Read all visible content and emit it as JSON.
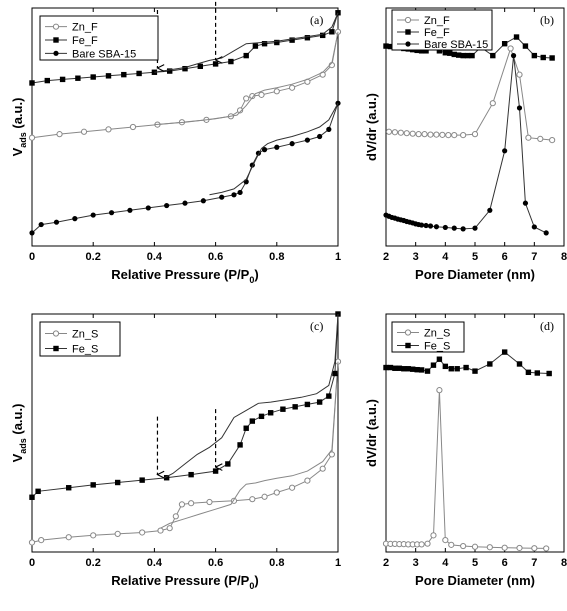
{
  "chart_data": [
    {
      "id": "a",
      "type": "line",
      "panel_label": "(a)",
      "xlabel": "Relative Pressure (P/P0)",
      "ylabel": "Vads (a.u.)",
      "xlim": [
        0,
        1
      ],
      "xticks": [
        "0",
        "0.2",
        "0.4",
        "0.6",
        "0.8",
        "1"
      ],
      "yticks_shown": false,
      "legend_position": "top-left",
      "annotations": [
        {
          "type": "dashed-arrow",
          "x": 0.41
        },
        {
          "type": "dashed-arrow",
          "x": 0.6
        }
      ],
      "series": [
        {
          "name": "Zn_F",
          "marker": "open-circle",
          "adsorption": {
            "x": [
              0.0,
              0.09,
              0.17,
              0.25,
              0.33,
              0.41,
              0.49,
              0.57,
              0.65,
              0.68,
              0.7,
              0.72,
              0.75,
              0.8,
              0.85,
              0.9,
              0.95,
              0.98,
              1.0
            ],
            "y": [
              0.455,
              0.47,
              0.48,
              0.49,
              0.5,
              0.51,
              0.52,
              0.53,
              0.545,
              0.57,
              0.62,
              0.63,
              0.635,
              0.65,
              0.665,
              0.69,
              0.72,
              0.76,
              0.9
            ]
          },
          "desorption": {
            "x": [
              1.0,
              0.98,
              0.95,
              0.9,
              0.85,
              0.8,
              0.76,
              0.73,
              0.7,
              0.67,
              0.6,
              0.5,
              0.4
            ],
            "y": [
              0.9,
              0.77,
              0.73,
              0.7,
              0.68,
              0.665,
              0.655,
              0.64,
              0.59,
              0.55,
              0.535,
              0.52,
              0.51
            ]
          }
        },
        {
          "name": "Fe_F",
          "marker": "filled-square",
          "adsorption": {
            "x": [
              0.0,
              0.05,
              0.1,
              0.15,
              0.2,
              0.25,
              0.3,
              0.35,
              0.4,
              0.45,
              0.5,
              0.55,
              0.6,
              0.65,
              0.7,
              0.73,
              0.76,
              0.8,
              0.85,
              0.9,
              0.95,
              0.98,
              1.0
            ],
            "y": [
              0.685,
              0.695,
              0.7,
              0.705,
              0.71,
              0.715,
              0.72,
              0.725,
              0.73,
              0.735,
              0.745,
              0.755,
              0.765,
              0.775,
              0.8,
              0.84,
              0.85,
              0.855,
              0.865,
              0.875,
              0.885,
              0.9,
              0.98
            ]
          },
          "desorption": {
            "x": [
              1.0,
              0.98,
              0.95,
              0.9,
              0.85,
              0.8,
              0.75,
              0.7,
              0.66,
              0.62,
              0.58,
              0.54,
              0.5,
              0.45,
              0.4
            ],
            "y": [
              0.98,
              0.92,
              0.89,
              0.88,
              0.87,
              0.86,
              0.855,
              0.85,
              0.82,
              0.79,
              0.78,
              0.765,
              0.75,
              0.74,
              0.73
            ]
          }
        },
        {
          "name": "Bare SBA-15",
          "marker": "filled-circle",
          "adsorption": {
            "x": [
              0.0,
              0.03,
              0.08,
              0.14,
              0.2,
              0.26,
              0.32,
              0.38,
              0.44,
              0.5,
              0.56,
              0.62,
              0.66,
              0.68,
              0.7,
              0.72,
              0.74,
              0.76,
              0.8,
              0.85,
              0.9,
              0.94,
              0.97,
              1.0
            ],
            "y": [
              0.055,
              0.09,
              0.1,
              0.115,
              0.13,
              0.14,
              0.15,
              0.16,
              0.17,
              0.18,
              0.19,
              0.205,
              0.215,
              0.225,
              0.27,
              0.34,
              0.39,
              0.405,
              0.415,
              0.43,
              0.445,
              0.46,
              0.49,
              0.6
            ]
          },
          "desorption": {
            "x": [
              1.0,
              0.97,
              0.94,
              0.9,
              0.85,
              0.8,
              0.77,
              0.75,
              0.73,
              0.7,
              0.66,
              0.62,
              0.58
            ],
            "y": [
              0.6,
              0.53,
              0.5,
              0.48,
              0.46,
              0.445,
              0.43,
              0.41,
              0.36,
              0.28,
              0.24,
              0.225,
              0.215
            ]
          }
        }
      ]
    },
    {
      "id": "b",
      "type": "line",
      "panel_label": "(b)",
      "xlabel": "Pore Diameter (nm)",
      "ylabel": "dV/dr (a.u.)",
      "xlim": [
        2,
        8
      ],
      "xticks": [
        "2",
        "3",
        "4",
        "5",
        "6",
        "7",
        "8"
      ],
      "yticks_shown": false,
      "legend_position": "top-left",
      "series": [
        {
          "name": "Zn_F",
          "marker": "open-circle",
          "x": [
            2.1,
            2.3,
            2.5,
            2.7,
            2.9,
            3.1,
            3.3,
            3.5,
            3.7,
            3.9,
            4.1,
            4.3,
            4.6,
            5.0,
            5.6,
            6.2,
            6.5,
            6.8,
            7.2,
            7.6
          ],
          "y": [
            0.48,
            0.478,
            0.476,
            0.474,
            0.472,
            0.47,
            0.47,
            0.468,
            0.468,
            0.467,
            0.466,
            0.466,
            0.466,
            0.47,
            0.6,
            0.83,
            0.72,
            0.455,
            0.45,
            0.445
          ]
        },
        {
          "name": "Fe_F",
          "marker": "filled-square",
          "x": [
            2.0,
            2.15,
            2.3,
            2.45,
            2.6,
            2.75,
            2.9,
            3.05,
            3.2,
            3.35,
            3.6,
            3.8,
            4.0,
            4.15,
            4.3,
            4.45,
            4.6,
            4.75,
            4.9,
            5.2,
            5.6,
            6.0,
            6.4,
            6.7,
            7.0,
            7.3,
            7.6
          ],
          "y": [
            0.84,
            0.838,
            0.836,
            0.834,
            0.83,
            0.828,
            0.825,
            0.822,
            0.82,
            0.82,
            0.87,
            0.82,
            0.812,
            0.81,
            0.805,
            0.802,
            0.8,
            0.8,
            0.8,
            0.835,
            0.8,
            0.85,
            0.878,
            0.84,
            0.8,
            0.792,
            0.79
          ]
        },
        {
          "name": "Bare SBA-15",
          "marker": "filled-circle",
          "x": [
            2.0,
            2.1,
            2.2,
            2.3,
            2.4,
            2.5,
            2.6,
            2.7,
            2.8,
            2.9,
            3.0,
            3.1,
            3.2,
            3.35,
            3.5,
            3.7,
            4.0,
            4.3,
            4.6,
            5.0,
            5.5,
            6.0,
            6.3,
            6.5,
            6.7,
            7.0,
            7.4
          ],
          "y": [
            0.13,
            0.125,
            0.12,
            0.117,
            0.113,
            0.11,
            0.107,
            0.103,
            0.1,
            0.097,
            0.093,
            0.09,
            0.088,
            0.086,
            0.084,
            0.081,
            0.078,
            0.075,
            0.072,
            0.075,
            0.15,
            0.4,
            0.8,
            0.58,
            0.18,
            0.08,
            0.055
          ]
        }
      ]
    },
    {
      "id": "c",
      "type": "line",
      "panel_label": "(c)",
      "xlabel": "Relative Pressure (P/P0)",
      "ylabel": "Vads (a.u.)",
      "xlim": [
        0,
        1
      ],
      "xticks": [
        "0",
        "0.2",
        "0.4",
        "0.6",
        "0.8",
        "1"
      ],
      "yticks_shown": false,
      "legend_position": "top-left",
      "annotations": [
        {
          "type": "dashed-arrow",
          "x": 0.41
        },
        {
          "type": "dashed-arrow",
          "x": 0.6
        }
      ],
      "series": [
        {
          "name": "Zn_S",
          "marker": "open-circle",
          "adsorption": {
            "x": [
              0.0,
              0.03,
              0.12,
              0.2,
              0.28,
              0.36,
              0.42,
              0.45,
              0.47,
              0.49,
              0.52,
              0.58,
              0.66,
              0.72,
              0.76,
              0.8,
              0.85,
              0.9,
              0.95,
              0.98,
              1.0
            ],
            "y": [
              0.04,
              0.05,
              0.062,
              0.07,
              0.076,
              0.082,
              0.09,
              0.1,
              0.15,
              0.2,
              0.205,
              0.21,
              0.215,
              0.222,
              0.232,
              0.25,
              0.27,
              0.3,
              0.35,
              0.41,
              0.8
            ]
          },
          "desorption": {
            "x": [
              1.0,
              0.98,
              0.95,
              0.9,
              0.85,
              0.8,
              0.76,
              0.73,
              0.7,
              0.68,
              0.65,
              0.6,
              0.55,
              0.5,
              0.45,
              0.42
            ],
            "y": [
              0.8,
              0.43,
              0.38,
              0.34,
              0.32,
              0.31,
              0.3,
              0.29,
              0.285,
              0.26,
              0.2,
              0.18,
              0.16,
              0.14,
              0.12,
              0.1
            ]
          }
        },
        {
          "name": "Fe_S",
          "marker": "filled-square",
          "adsorption": {
            "x": [
              0.0,
              0.02,
              0.12,
              0.2,
              0.28,
              0.36,
              0.44,
              0.52,
              0.6,
              0.64,
              0.68,
              0.7,
              0.72,
              0.75,
              0.78,
              0.82,
              0.86,
              0.9,
              0.94,
              0.97,
              0.99,
              1.0
            ],
            "y": [
              0.23,
              0.255,
              0.27,
              0.282,
              0.292,
              0.302,
              0.312,
              0.325,
              0.34,
              0.37,
              0.45,
              0.52,
              0.55,
              0.57,
              0.585,
              0.6,
              0.61,
              0.62,
              0.63,
              0.655,
              0.75,
              1.0
            ]
          },
          "desorption": {
            "x": [
              1.0,
              0.99,
              0.97,
              0.93,
              0.88,
              0.83,
              0.78,
              0.74,
              0.7,
              0.66,
              0.62,
              0.58,
              0.54,
              0.5,
              0.46,
              0.43
            ],
            "y": [
              1.0,
              0.8,
              0.7,
              0.665,
              0.65,
              0.64,
              0.63,
              0.625,
              0.595,
              0.565,
              0.48,
              0.44,
              0.41,
              0.37,
              0.33,
              0.31
            ]
          }
        }
      ]
    },
    {
      "id": "d",
      "type": "line",
      "panel_label": "(d)",
      "xlabel": "Pore Diameter (nm)",
      "ylabel": "dV/dr (a.u.)",
      "xlim": [
        2,
        8
      ],
      "xticks": [
        "2",
        "3",
        "4",
        "5",
        "6",
        "7",
        "8"
      ],
      "yticks_shown": false,
      "legend_position": "top-left",
      "series": [
        {
          "name": "Zn_S",
          "marker": "open-circle",
          "x": [
            2.0,
            2.15,
            2.3,
            2.45,
            2.6,
            2.75,
            2.9,
            3.05,
            3.2,
            3.4,
            3.6,
            3.8,
            4.0,
            4.2,
            4.6,
            5.0,
            5.5,
            6.0,
            6.5,
            7.0,
            7.4
          ],
          "y": [
            0.035,
            0.034,
            0.034,
            0.033,
            0.033,
            0.032,
            0.032,
            0.032,
            0.032,
            0.035,
            0.07,
            0.68,
            0.05,
            0.03,
            0.025,
            0.022,
            0.02,
            0.018,
            0.017,
            0.016,
            0.015
          ]
        },
        {
          "name": "Fe_S",
          "marker": "filled-square",
          "x": [
            2.0,
            2.15,
            2.3,
            2.45,
            2.6,
            2.75,
            2.9,
            3.05,
            3.2,
            3.4,
            3.6,
            3.8,
            4.0,
            4.2,
            4.4,
            4.7,
            5.0,
            5.5,
            6.0,
            6.5,
            6.8,
            7.1,
            7.5
          ],
          "y": [
            0.775,
            0.775,
            0.772,
            0.772,
            0.77,
            0.77,
            0.768,
            0.766,
            0.765,
            0.76,
            0.785,
            0.81,
            0.78,
            0.77,
            0.77,
            0.775,
            0.76,
            0.79,
            0.84,
            0.79,
            0.755,
            0.752,
            0.75
          ]
        }
      ]
    }
  ]
}
